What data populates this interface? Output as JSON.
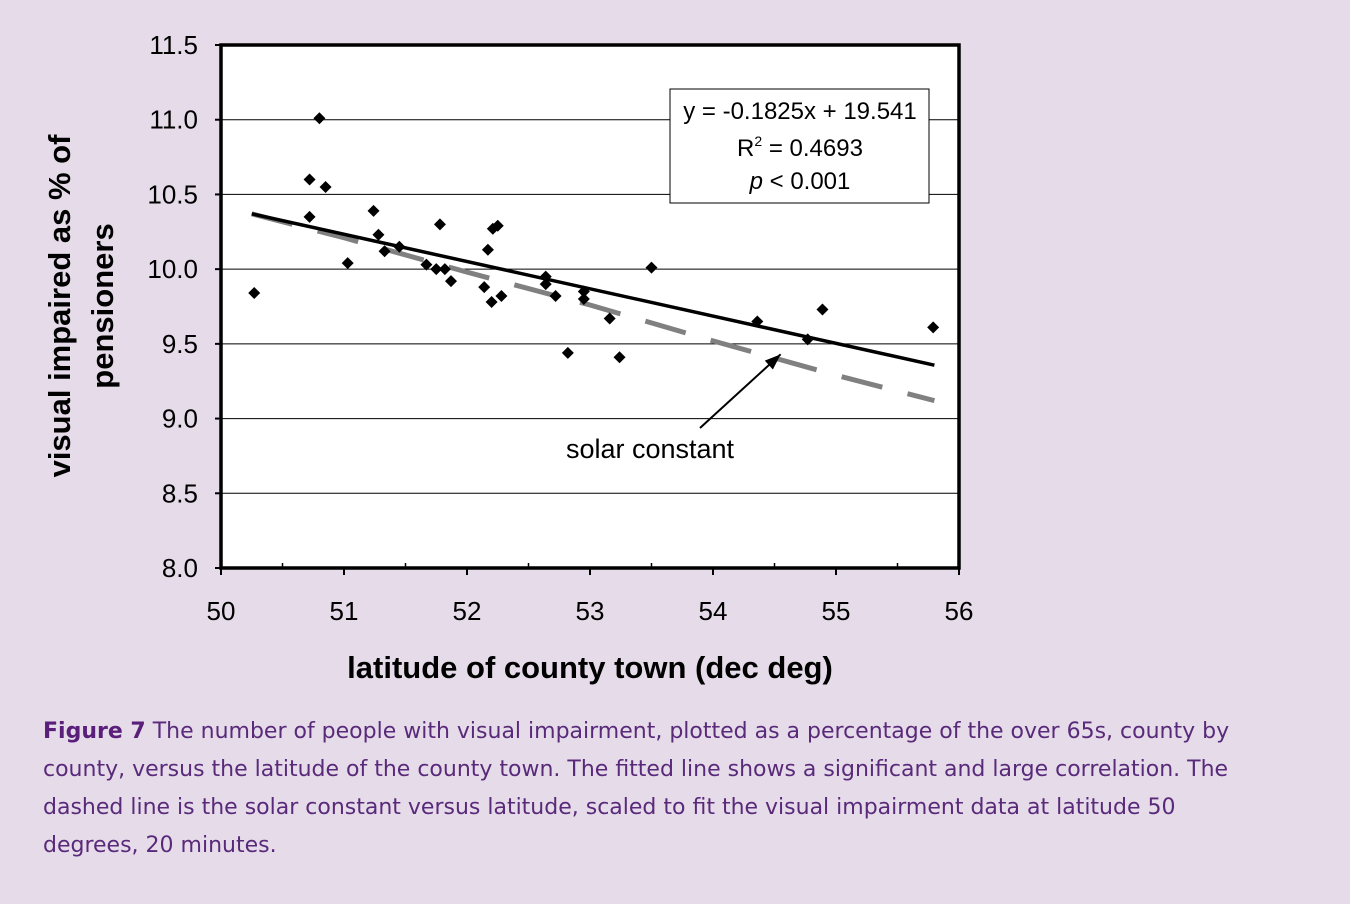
{
  "figure": {
    "label": "Figure 7",
    "caption": "The number of people with visual impairment, plotted as a percentage of the over 65s, county by county, versus the latitude of the county town. The fitted line shows a significant and large correlation. The dashed line is the solar constant versus latitude, scaled to fit the visual impairment data at latitude 50 degrees, 20 minutes."
  },
  "colors": {
    "background": "#e5dbe9",
    "plot_area": "#ffffff",
    "caption_text": "#5a2a7a",
    "points": "#000000",
    "dashed_line": "#808080"
  },
  "chart_data": {
    "type": "scatter",
    "xlabel": "latitude of county town (dec deg)",
    "ylabel_lines": [
      "visual impaired as % of",
      "pensioners"
    ],
    "xlim": [
      50,
      56
    ],
    "ylim": [
      8.0,
      11.5
    ],
    "x_ticks": [
      "50",
      "51",
      "52",
      "53",
      "54",
      "55",
      "56"
    ],
    "y_ticks": [
      "8.0",
      "8.5",
      "9.0",
      "9.5",
      "10.0",
      "10.5",
      "11.0",
      "11.5"
    ],
    "grid": "horizontal",
    "points": [
      {
        "x": 50.27,
        "y": 9.84
      },
      {
        "x": 50.72,
        "y": 10.6
      },
      {
        "x": 50.72,
        "y": 10.35
      },
      {
        "x": 50.8,
        "y": 11.01
      },
      {
        "x": 50.85,
        "y": 10.55
      },
      {
        "x": 51.03,
        "y": 10.04
      },
      {
        "x": 51.24,
        "y": 10.39
      },
      {
        "x": 51.28,
        "y": 10.23
      },
      {
        "x": 51.33,
        "y": 10.12
      },
      {
        "x": 51.45,
        "y": 10.15
      },
      {
        "x": 51.67,
        "y": 10.03
      },
      {
        "x": 51.75,
        "y": 10.0
      },
      {
        "x": 51.78,
        "y": 10.3
      },
      {
        "x": 51.82,
        "y": 10.0
      },
      {
        "x": 51.87,
        "y": 9.92
      },
      {
        "x": 52.14,
        "y": 9.88
      },
      {
        "x": 52.17,
        "y": 10.13
      },
      {
        "x": 52.21,
        "y": 10.27
      },
      {
        "x": 52.25,
        "y": 10.29
      },
      {
        "x": 52.2,
        "y": 9.78
      },
      {
        "x": 52.28,
        "y": 9.82
      },
      {
        "x": 52.64,
        "y": 9.95
      },
      {
        "x": 52.64,
        "y": 9.9
      },
      {
        "x": 52.72,
        "y": 9.82
      },
      {
        "x": 52.82,
        "y": 9.44
      },
      {
        "x": 52.95,
        "y": 9.85
      },
      {
        "x": 52.95,
        "y": 9.8
      },
      {
        "x": 53.16,
        "y": 9.67
      },
      {
        "x": 53.24,
        "y": 9.41
      },
      {
        "x": 53.5,
        "y": 10.01
      },
      {
        "x": 54.36,
        "y": 9.65
      },
      {
        "x": 54.77,
        "y": 9.53
      },
      {
        "x": 54.89,
        "y": 9.73
      },
      {
        "x": 55.79,
        "y": 9.61
      }
    ],
    "trendline": {
      "slope": -0.1825,
      "intercept": 19.541,
      "x_range": [
        50.25,
        55.8
      ],
      "equation": "y = -0.1825x + 19.541",
      "r2_prefix": "R",
      "r2_sup": "2",
      "r2_value": " = 0.4693",
      "p_symbol": "p",
      "p_value": " < 0.001"
    },
    "solar_constant_line": {
      "style": "dashed",
      "x": [
        50.25,
        51.0,
        52.0,
        53.0,
        54.0,
        55.0,
        55.8
      ],
      "y": [
        10.37,
        10.21,
        9.98,
        9.76,
        9.52,
        9.29,
        9.12
      ]
    },
    "annotation": {
      "text": "solar constant",
      "arrow_to": {
        "x": 54.55,
        "y": 9.43
      }
    }
  }
}
